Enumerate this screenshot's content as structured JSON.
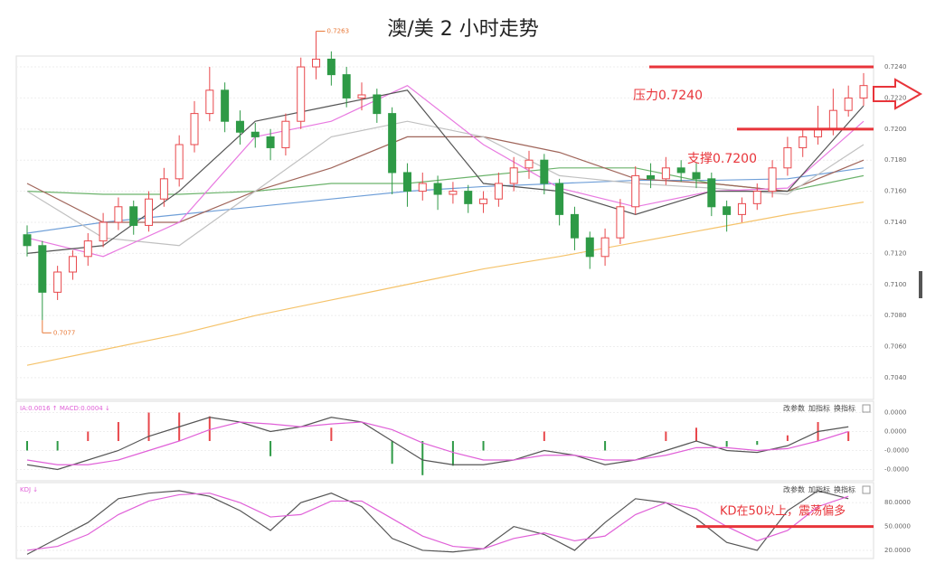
{
  "chart_data": [
    {
      "type": "candlestick",
      "title": "澳/美 2 小时走势",
      "up_color": "#e8474b",
      "down_color": "#2e9a46",
      "open": [
        0.7132,
        0.7125,
        0.7095,
        0.7108,
        0.7118,
        0.7128,
        0.714,
        0.715,
        0.7138,
        0.7155,
        0.7168,
        0.719,
        0.721,
        0.7225,
        0.7205,
        0.7198,
        0.7195,
        0.7188,
        0.7205,
        0.724,
        0.7245,
        0.7235,
        0.722,
        0.7222,
        0.721,
        0.7172,
        0.716,
        0.7165,
        0.7158,
        0.716,
        0.7152,
        0.7155,
        0.7165,
        0.7175,
        0.718,
        0.7165,
        0.7145,
        0.713,
        0.7118,
        0.713,
        0.715,
        0.717,
        0.7168,
        0.7175,
        0.7172,
        0.7168,
        0.715,
        0.7145,
        0.7152,
        0.716,
        0.7175,
        0.7188,
        0.7195,
        0.72,
        0.7212,
        0.722
      ],
      "high": [
        0.7138,
        0.7128,
        0.7112,
        0.7122,
        0.7133,
        0.7146,
        0.7156,
        0.7154,
        0.716,
        0.7175,
        0.7196,
        0.7218,
        0.724,
        0.723,
        0.7212,
        0.7204,
        0.72,
        0.721,
        0.7246,
        0.7263,
        0.725,
        0.724,
        0.723,
        0.7226,
        0.7214,
        0.7178,
        0.7172,
        0.717,
        0.7166,
        0.7164,
        0.716,
        0.7172,
        0.7182,
        0.7186,
        0.7184,
        0.7168,
        0.715,
        0.7134,
        0.7136,
        0.7155,
        0.7176,
        0.7178,
        0.7182,
        0.718,
        0.7178,
        0.7172,
        0.7154,
        0.7156,
        0.7165,
        0.718,
        0.7195,
        0.72,
        0.7215,
        0.7226,
        0.7228,
        0.7236
      ],
      "low": [
        0.7118,
        0.7077,
        0.709,
        0.7103,
        0.7112,
        0.7124,
        0.7135,
        0.7132,
        0.7134,
        0.715,
        0.7163,
        0.7185,
        0.7205,
        0.7198,
        0.719,
        0.7188,
        0.718,
        0.7183,
        0.72,
        0.7232,
        0.7228,
        0.7214,
        0.7212,
        0.7204,
        0.7158,
        0.715,
        0.7154,
        0.7148,
        0.7152,
        0.7146,
        0.7146,
        0.715,
        0.716,
        0.7168,
        0.7158,
        0.7138,
        0.7122,
        0.711,
        0.7112,
        0.7126,
        0.7145,
        0.7162,
        0.7164,
        0.7166,
        0.7162,
        0.7144,
        0.7134,
        0.714,
        0.7148,
        0.7156,
        0.717,
        0.7182,
        0.719,
        0.7196,
        0.7208,
        0.7215
      ],
      "close": [
        0.7125,
        0.7095,
        0.7108,
        0.7118,
        0.7128,
        0.714,
        0.715,
        0.7138,
        0.7155,
        0.7168,
        0.719,
        0.721,
        0.7225,
        0.7205,
        0.7198,
        0.7195,
        0.7188,
        0.7205,
        0.724,
        0.7245,
        0.7235,
        0.722,
        0.7222,
        0.721,
        0.7172,
        0.716,
        0.7165,
        0.7158,
        0.716,
        0.7152,
        0.7155,
        0.7165,
        0.7175,
        0.718,
        0.7165,
        0.7145,
        0.713,
        0.7118,
        0.713,
        0.715,
        0.717,
        0.7168,
        0.7175,
        0.7172,
        0.7168,
        0.715,
        0.7145,
        0.7152,
        0.716,
        0.7175,
        0.7188,
        0.7195,
        0.72,
        0.7212,
        0.722,
        0.7228
      ],
      "series": [
        {
          "color": "#f5c36b",
          "x": [
            0,
            5,
            10,
            15,
            20,
            25,
            30,
            35,
            40,
            45,
            50,
            55
          ],
          "values": [
            0.7048,
            0.7058,
            0.7068,
            0.708,
            0.709,
            0.71,
            0.711,
            0.7118,
            0.7127,
            0.7136,
            0.7145,
            0.7153
          ]
        },
        {
          "color": "#6f9fd8",
          "x": [
            0,
            5,
            10,
            15,
            20,
            25,
            30,
            35,
            40,
            45,
            50,
            55
          ],
          "values": [
            0.7133,
            0.714,
            0.7145,
            0.715,
            0.7155,
            0.716,
            0.7163,
            0.7165,
            0.7167,
            0.7167,
            0.7168,
            0.7175
          ]
        },
        {
          "color": "#6cb36c",
          "x": [
            0,
            5,
            10,
            15,
            20,
            25,
            30,
            35,
            40,
            45,
            50,
            55
          ],
          "values": [
            0.716,
            0.7158,
            0.7158,
            0.716,
            0.7165,
            0.7165,
            0.717,
            0.7175,
            0.7175,
            0.7165,
            0.716,
            0.717
          ]
        },
        {
          "color": "#a0655a",
          "x": [
            0,
            5,
            10,
            15,
            20,
            25,
            30,
            35,
            40,
            45,
            50,
            55
          ],
          "values": [
            0.7165,
            0.714,
            0.714,
            0.716,
            0.7175,
            0.7195,
            0.7195,
            0.7185,
            0.7168,
            0.7165,
            0.716,
            0.718
          ]
        },
        {
          "color": "#c0c0c0",
          "x": [
            0,
            5,
            10,
            15,
            20,
            25,
            30,
            35,
            40,
            45,
            50,
            55
          ],
          "values": [
            0.716,
            0.713,
            0.7125,
            0.716,
            0.7195,
            0.7205,
            0.7195,
            0.717,
            0.7165,
            0.7162,
            0.7158,
            0.719
          ]
        },
        {
          "color": "#e879e0",
          "x": [
            0,
            5,
            10,
            15,
            20,
            25,
            30,
            35,
            40,
            45,
            50,
            55
          ],
          "values": [
            0.713,
            0.7118,
            0.714,
            0.7195,
            0.7205,
            0.7228,
            0.719,
            0.7162,
            0.715,
            0.716,
            0.7162,
            0.7205
          ]
        },
        {
          "color": "#555555",
          "x": [
            0,
            5,
            10,
            15,
            20,
            25,
            30,
            35,
            40,
            45,
            50,
            55
          ],
          "values": [
            0.712,
            0.7125,
            0.716,
            0.7205,
            0.7215,
            0.7225,
            0.7165,
            0.716,
            0.7145,
            0.716,
            0.716,
            0.7215
          ]
        }
      ],
      "ylim": [
        0.7026,
        0.7247
      ],
      "yticks": [
        {
          "value": 0.704,
          "label": "0.7040"
        },
        {
          "value": 0.706,
          "label": "0.7060"
        },
        {
          "value": 0.708,
          "label": "0.7080"
        },
        {
          "value": 0.71,
          "label": "0.7100"
        },
        {
          "value": 0.712,
          "label": "0.7120"
        },
        {
          "value": 0.714,
          "label": "0.7140"
        },
        {
          "value": 0.716,
          "label": "0.7160"
        },
        {
          "value": 0.718,
          "label": "0.7180"
        },
        {
          "value": 0.72,
          "label": "0.7200"
        },
        {
          "value": 0.722,
          "label": "0.7220"
        },
        {
          "value": 0.724,
          "label": "0.7240"
        }
      ],
      "grid": true,
      "high_marker": 0.7263,
      "low_marker": 0.7077,
      "resistance": {
        "label": "压力0.7240",
        "value": 0.724
      },
      "support": {
        "label": "支撑0.7200",
        "value": 0.72
      },
      "line_color": "#e8343a"
    },
    {
      "type": "macd",
      "header": "IA:0.0016 ↑ MACD:0.0004 ↓",
      "buttons": [
        "改参数",
        "加指标",
        "换指标"
      ],
      "x": [
        0,
        2,
        4,
        6,
        8,
        10,
        12,
        14,
        16,
        18,
        20,
        22,
        24,
        26,
        28,
        30,
        32,
        34,
        36,
        38,
        40,
        42,
        44,
        46,
        48,
        50,
        52,
        54
      ],
      "histogram": [
        -1e-05,
        -1e-05,
        1e-05,
        2e-05,
        3e-05,
        3e-05,
        2.6e-05,
        0.0,
        -1.6e-05,
        0.0,
        1.4e-05,
        0.0,
        -2.4e-05,
        -3.6e-05,
        -2.6e-05,
        -1e-05,
        0.0,
        1e-05,
        0.0,
        -1e-05,
        0.0,
        1e-05,
        1.4e-05,
        -6e-06,
        -4e-06,
        6e-06,
        2e-05,
        1e-05
      ],
      "series": [
        {
          "color": "#555555",
          "values": [
            -2.5e-05,
            -3e-05,
            -2e-05,
            -1e-05,
            5e-06,
            1.5e-05,
            2.5e-05,
            2e-05,
            1e-05,
            1.5e-05,
            2.5e-05,
            2e-05,
            0.0,
            -2e-05,
            -2.5e-05,
            -2.5e-05,
            -2e-05,
            -1e-05,
            -1.5e-05,
            -2.5e-05,
            -2e-05,
            -1e-05,
            0.0,
            -1e-05,
            -1.2e-05,
            -5e-06,
            1e-05,
            1.5e-05
          ]
        },
        {
          "color": "#e060d8",
          "values": [
            -2e-05,
            -2.5e-05,
            -2.5e-05,
            -2e-05,
            -1e-05,
            0.0,
            1.2e-05,
            2e-05,
            1.8e-05,
            1.5e-05,
            1.8e-05,
            2e-05,
            1.2e-05,
            -2e-06,
            -1.2e-05,
            -2e-05,
            -2e-05,
            -1.5e-05,
            -1.5e-05,
            -2e-05,
            -2e-05,
            -1.5e-05,
            -7e-06,
            -7e-06,
            -1e-05,
            -8e-06,
            0.0,
            1e-05
          ]
        }
      ],
      "up_color": "#e8474b",
      "down_color": "#2e9a46",
      "ylim": [
        -4e-05,
        4e-05
      ],
      "yticks": [
        {
          "value": 3e-05,
          "label": "0.0000"
        },
        {
          "value": 1e-05,
          "label": "0.0000"
        },
        {
          "value": -1e-05,
          "label": "-0.0000"
        },
        {
          "value": -3e-05,
          "label": "-0.0000"
        }
      ]
    },
    {
      "type": "kd",
      "header": "KDJ ↓",
      "buttons": [
        "改参数",
        "加指标",
        "换指标"
      ],
      "x": [
        0,
        2,
        4,
        6,
        8,
        10,
        12,
        14,
        16,
        18,
        20,
        22,
        24,
        26,
        28,
        30,
        32,
        34,
        36,
        38,
        40,
        42,
        44,
        46,
        48,
        50,
        52,
        54
      ],
      "series": [
        {
          "color": "#555555",
          "values": [
            15,
            35,
            55,
            85,
            92,
            95,
            88,
            70,
            45,
            80,
            92,
            75,
            35,
            20,
            18,
            22,
            50,
            40,
            20,
            55,
            85,
            80,
            60,
            30,
            20,
            70,
            95,
            85
          ]
        },
        {
          "color": "#e060d8",
          "values": [
            20,
            25,
            40,
            65,
            82,
            90,
            92,
            80,
            62,
            65,
            82,
            82,
            60,
            38,
            25,
            22,
            35,
            42,
            32,
            38,
            65,
            80,
            72,
            50,
            32,
            45,
            75,
            88
          ]
        }
      ],
      "ylim": [
        12,
        103
      ],
      "yticks": [
        {
          "value": 80,
          "label": "80.0000"
        },
        {
          "value": 50,
          "label": "50.0000"
        },
        {
          "value": 20,
          "label": "20.0000"
        }
      ],
      "annotation": {
        "label": "KD在50以上，震荡偏多",
        "value": 50
      },
      "line_color": "#e8343a"
    }
  ]
}
